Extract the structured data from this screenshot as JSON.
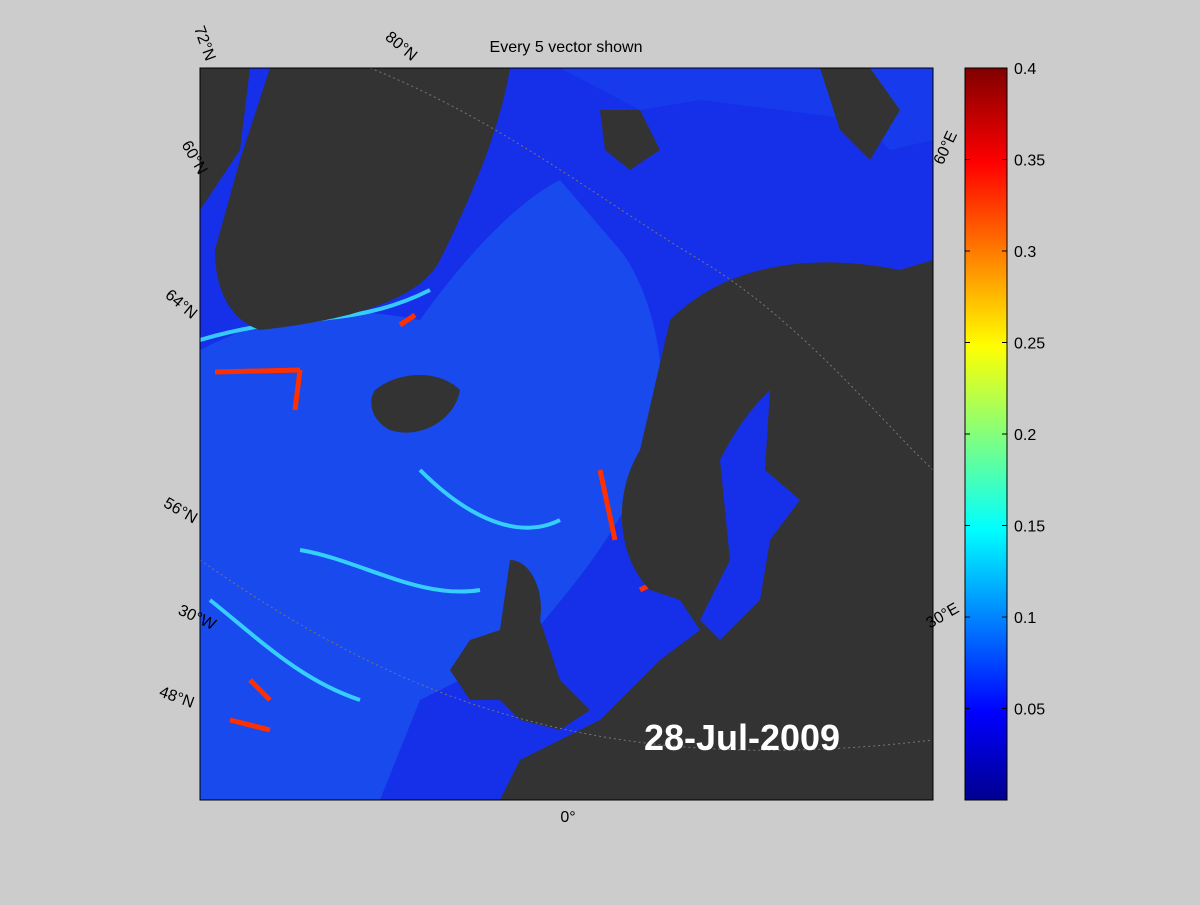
{
  "title": "Every 5 vector shown",
  "date_label": "28-Jul-2009",
  "graticule_labels": [
    "72°N",
    "80°N",
    "60°N",
    "64°N",
    "56°N",
    "30°W",
    "48°N",
    "0°",
    "30°E",
    "60°E"
  ],
  "colorbar": {
    "lim": [
      0,
      0.4
    ],
    "ticks": [
      0.05,
      0.1,
      0.15,
      0.2,
      0.25,
      0.3,
      0.35,
      0.4
    ]
  }
}
